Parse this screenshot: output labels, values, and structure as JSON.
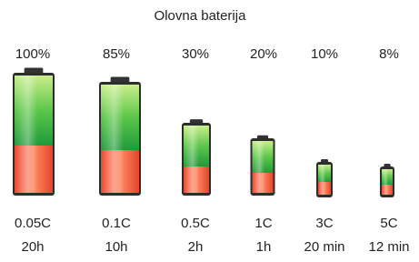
{
  "title": "Olovna baterija",
  "items": [
    {
      "percent": "100%",
      "rate": "0.05C",
      "time": "20h"
    },
    {
      "percent": "85%",
      "rate": "0.1C",
      "time": "10h"
    },
    {
      "percent": "30%",
      "rate": "0.5C",
      "time": "2h"
    },
    {
      "percent": "20%",
      "rate": "1C",
      "time": "1h"
    },
    {
      "percent": "10%",
      "rate": "3C",
      "time": "20 min"
    },
    {
      "percent": "8%",
      "rate": "5C",
      "time": "12 min"
    }
  ]
}
